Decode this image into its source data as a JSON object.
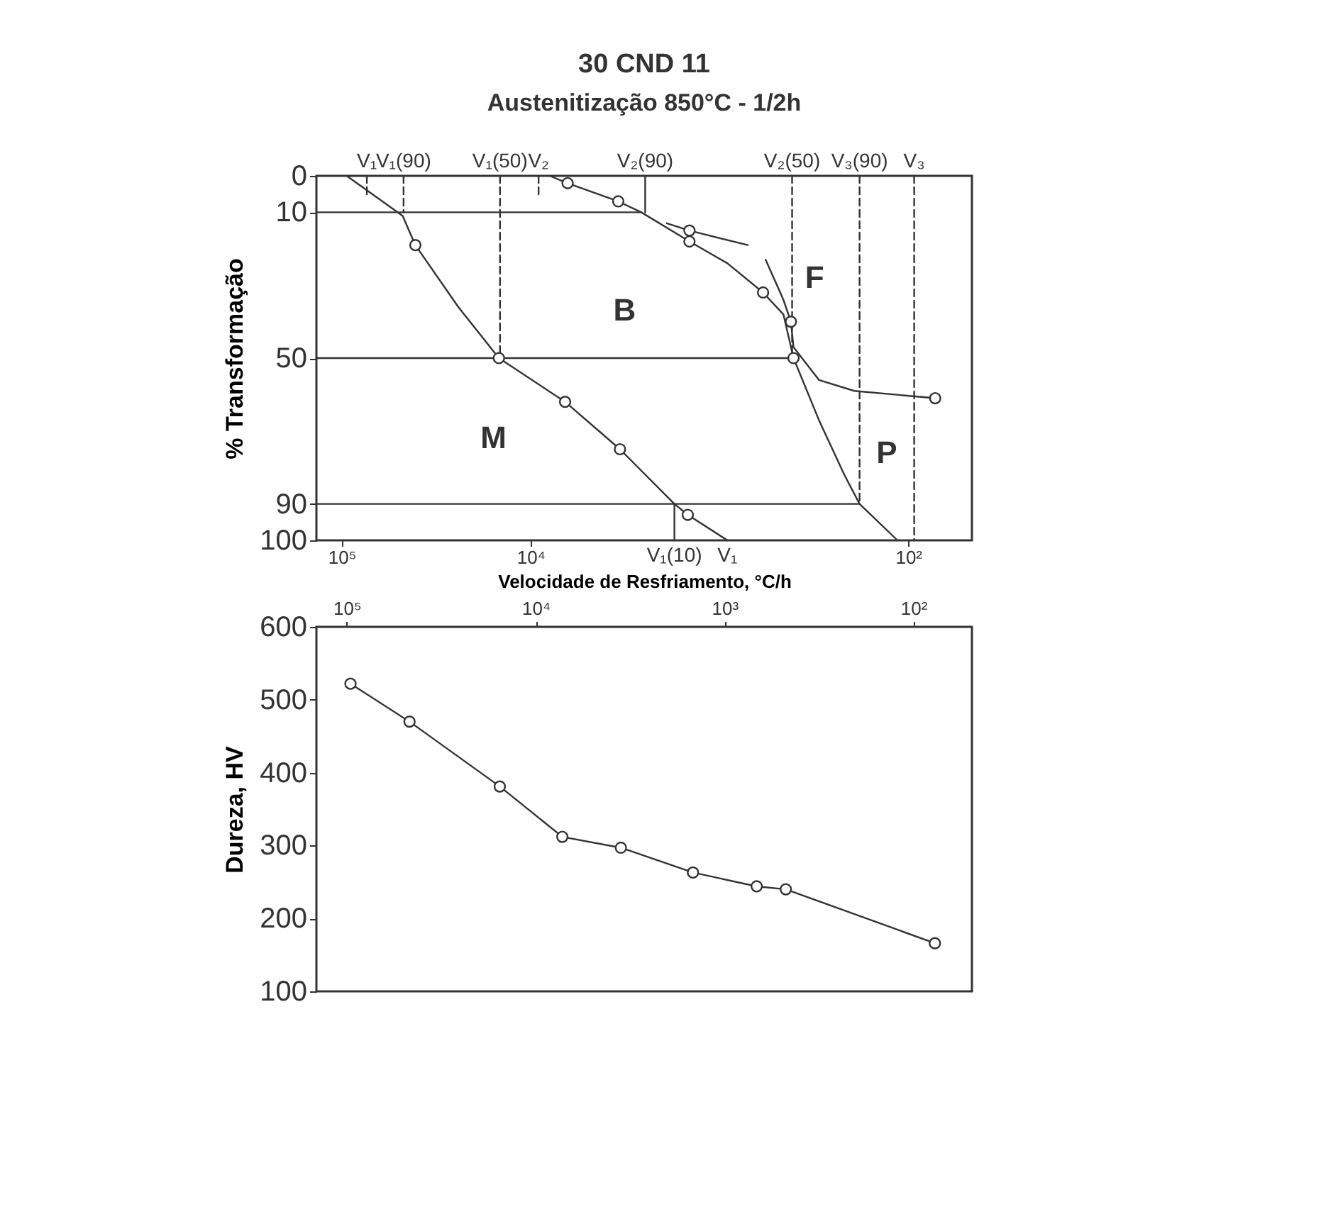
{
  "chart_data": [
    {
      "type": "line",
      "title": "30 CND 11",
      "subtitle": "Austenitização 850°C - 1/2h",
      "xlabel": "Velocidade de Resfriamento, °C/h",
      "ylabel": "% Transformação",
      "log": "x",
      "xlim": [
        136000,
        46
      ],
      "ylim": [
        100,
        0
      ],
      "xticks": [
        {
          "value": 100000,
          "label": "10⁵"
        },
        {
          "value": 10000,
          "label": "10⁴"
        },
        {
          "value": 100,
          "label": "10²"
        }
      ],
      "yticks": [
        0,
        10,
        50,
        90,
        100
      ],
      "series": [
        {
          "type": "line",
          "color": "#333333",
          "x": [
            94000,
            47500,
            40700,
            24100,
            14700,
            6560,
            3360,
            1730,
            1470,
            906
          ],
          "values": [
            0,
            11,
            19,
            36,
            50,
            62,
            75,
            90,
            93,
            100
          ]
        },
        {
          "type": "line",
          "color": "#333333",
          "x": [
            7910,
            6360,
            3430,
            2590,
            1440,
            906,
            587,
            458,
            405,
            297,
            218,
            181,
            114
          ],
          "values": [
            0,
            2,
            7,
            10,
            18,
            24,
            32,
            38,
            50,
            67,
            82,
            90,
            100
          ]
        },
        {
          "type": "line",
          "color": "#333333",
          "x": [
            1900,
            1440,
            707
          ],
          "values": [
            13,
            15,
            19
          ]
        },
        {
          "type": "line",
          "color": "#333333",
          "x": [
            569,
            458,
            418,
            405,
            297,
            193,
            72
          ],
          "values": [
            23,
            34,
            40,
            47,
            56,
            59,
            61
          ]
        },
        {
          "type": "line",
          "color": "#333333",
          "x": [
            136000,
            2590
          ],
          "values": [
            10,
            10
          ]
        },
        {
          "type": "line",
          "color": "#333333",
          "x": [
            136000,
            405
          ],
          "values": [
            50,
            50
          ]
        },
        {
          "type": "line",
          "color": "#333333",
          "x": [
            136000,
            181
          ],
          "values": [
            90,
            90
          ]
        },
        {
          "type": "line",
          "color": "#333333",
          "line_style": "dashed",
          "x": [
            73500,
            73500
          ],
          "values": [
            0,
            6
          ]
        },
        {
          "type": "line",
          "color": "#333333",
          "line_style": "dashed",
          "x": [
            47000,
            47000
          ],
          "values": [
            0,
            10
          ]
        },
        {
          "type": "line",
          "color": "#333333",
          "line_style": "dashed",
          "x": [
            14500,
            14500
          ],
          "values": [
            0,
            50
          ]
        },
        {
          "type": "line",
          "color": "#333333",
          "line_style": "dashed",
          "x": [
            9060,
            9060
          ],
          "values": [
            0,
            6
          ]
        },
        {
          "type": "line",
          "color": "#333333",
          "x": [
            2470,
            2470
          ],
          "values": [
            0,
            10
          ]
        },
        {
          "type": "line",
          "color": "#333333",
          "line_style": "dashed",
          "x": [
            412,
            412
          ],
          "values": [
            0,
            50
          ]
        },
        {
          "type": "line",
          "color": "#333333",
          "line_style": "dashed",
          "x": [
            181,
            181
          ],
          "values": [
            0,
            90
          ]
        },
        {
          "type": "line",
          "color": "#333333",
          "line_style": "dashed",
          "x": [
            93,
            93
          ],
          "values": [
            0,
            100
          ]
        },
        {
          "type": "line",
          "color": "#333333",
          "x": [
            1730,
            1730
          ],
          "values": [
            90,
            100
          ]
        },
        {
          "type": "scatter",
          "color": "#333333",
          "marker": "circle",
          "x": [
            40700,
            14700,
            6560,
            3360,
            1470,
            6360,
            3430,
            1440,
            1440,
            587,
            418,
            405,
            72
          ],
          "values": [
            19,
            50,
            62,
            75,
            93,
            2,
            7,
            15,
            18,
            32,
            40,
            50,
            61
          ]
        }
      ],
      "annotations": [
        {
          "text": "V₁",
          "x": 73500,
          "y": 0
        },
        {
          "text": "V₁(90)",
          "x": 47000,
          "y": 0
        },
        {
          "text": "V₁(50)",
          "x": 14500,
          "y": 0
        },
        {
          "text": "V₂",
          "x": 9060,
          "y": 0
        },
        {
          "text": "V₂(90)",
          "x": 2470,
          "y": 0
        },
        {
          "text": "V₂(50)",
          "x": 412,
          "y": 0
        },
        {
          "text": "V₃(90)",
          "x": 181,
          "y": 0
        },
        {
          "text": "V₃",
          "x": 93,
          "y": 0
        },
        {
          "text": "V₁(10)",
          "x": 1730,
          "y": 100
        },
        {
          "text": "V₁",
          "x": 906,
          "y": 100
        },
        "M",
        "B",
        "F",
        "P"
      ]
    },
    {
      "type": "line",
      "ylabel": "Dureza, HV",
      "log": "x",
      "xlim": [
        145000,
        49
      ],
      "ylim": [
        100,
        600
      ],
      "xticks": [
        {
          "value": 100000,
          "label": "10⁵"
        },
        {
          "value": 10000,
          "label": "10⁴"
        },
        {
          "value": 1000,
          "label": "10³"
        },
        {
          "value": 100,
          "label": "10²"
        }
      ],
      "yticks": [
        100,
        200,
        300,
        400,
        500,
        600
      ],
      "marker": "circle",
      "series": [
        {
          "color": "#333333",
          "x": [
            95700,
            46600,
            15500,
            7230,
            3540,
            1470,
            676,
            474,
            77
          ],
          "values": [
            522,
            470,
            381,
            312,
            297,
            263,
            244,
            240,
            166
          ]
        }
      ]
    }
  ]
}
